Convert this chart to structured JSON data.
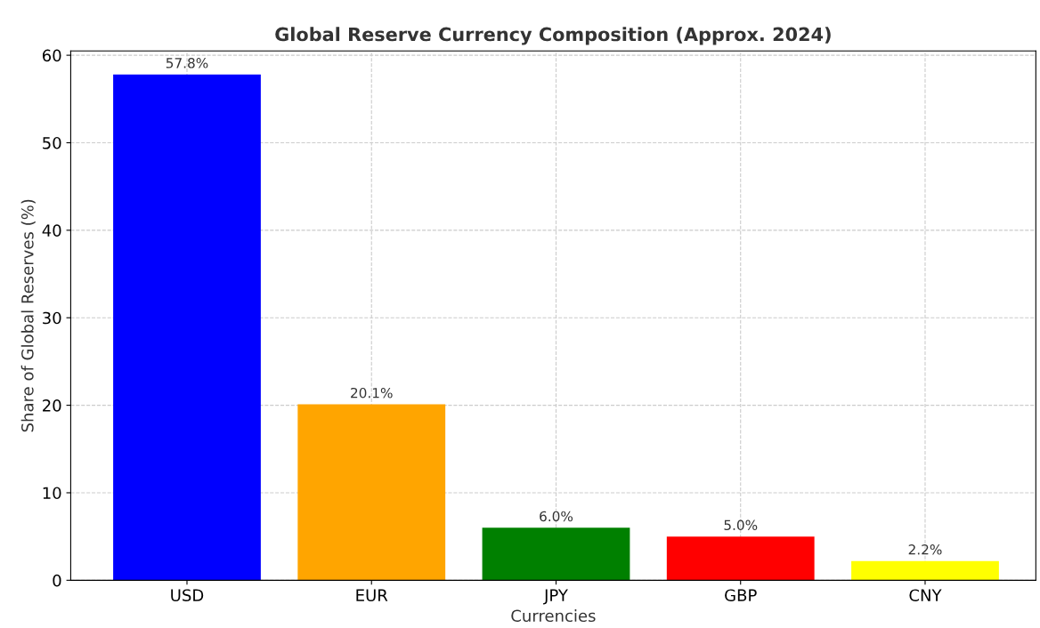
{
  "chart_data": {
    "type": "bar",
    "title": "Global Reserve Currency Composition (Approx. 2024)",
    "xlabel": "Currencies",
    "ylabel": "Share of Global Reserves (%)",
    "categories": [
      "USD",
      "EUR",
      "JPY",
      "GBP",
      "CNY"
    ],
    "values": [
      57.8,
      20.1,
      6.0,
      5.0,
      2.2
    ],
    "colors": [
      "#0000ff",
      "#ffa500",
      "#008000",
      "#ff0000",
      "#ffff00"
    ],
    "value_labels": [
      "57.8%",
      "20.1%",
      "6.0%",
      "5.0%",
      "2.2%"
    ],
    "ylim": [
      0,
      60.5
    ],
    "yticks": [
      0,
      10,
      20,
      30,
      40,
      50,
      60
    ],
    "grid": true
  }
}
